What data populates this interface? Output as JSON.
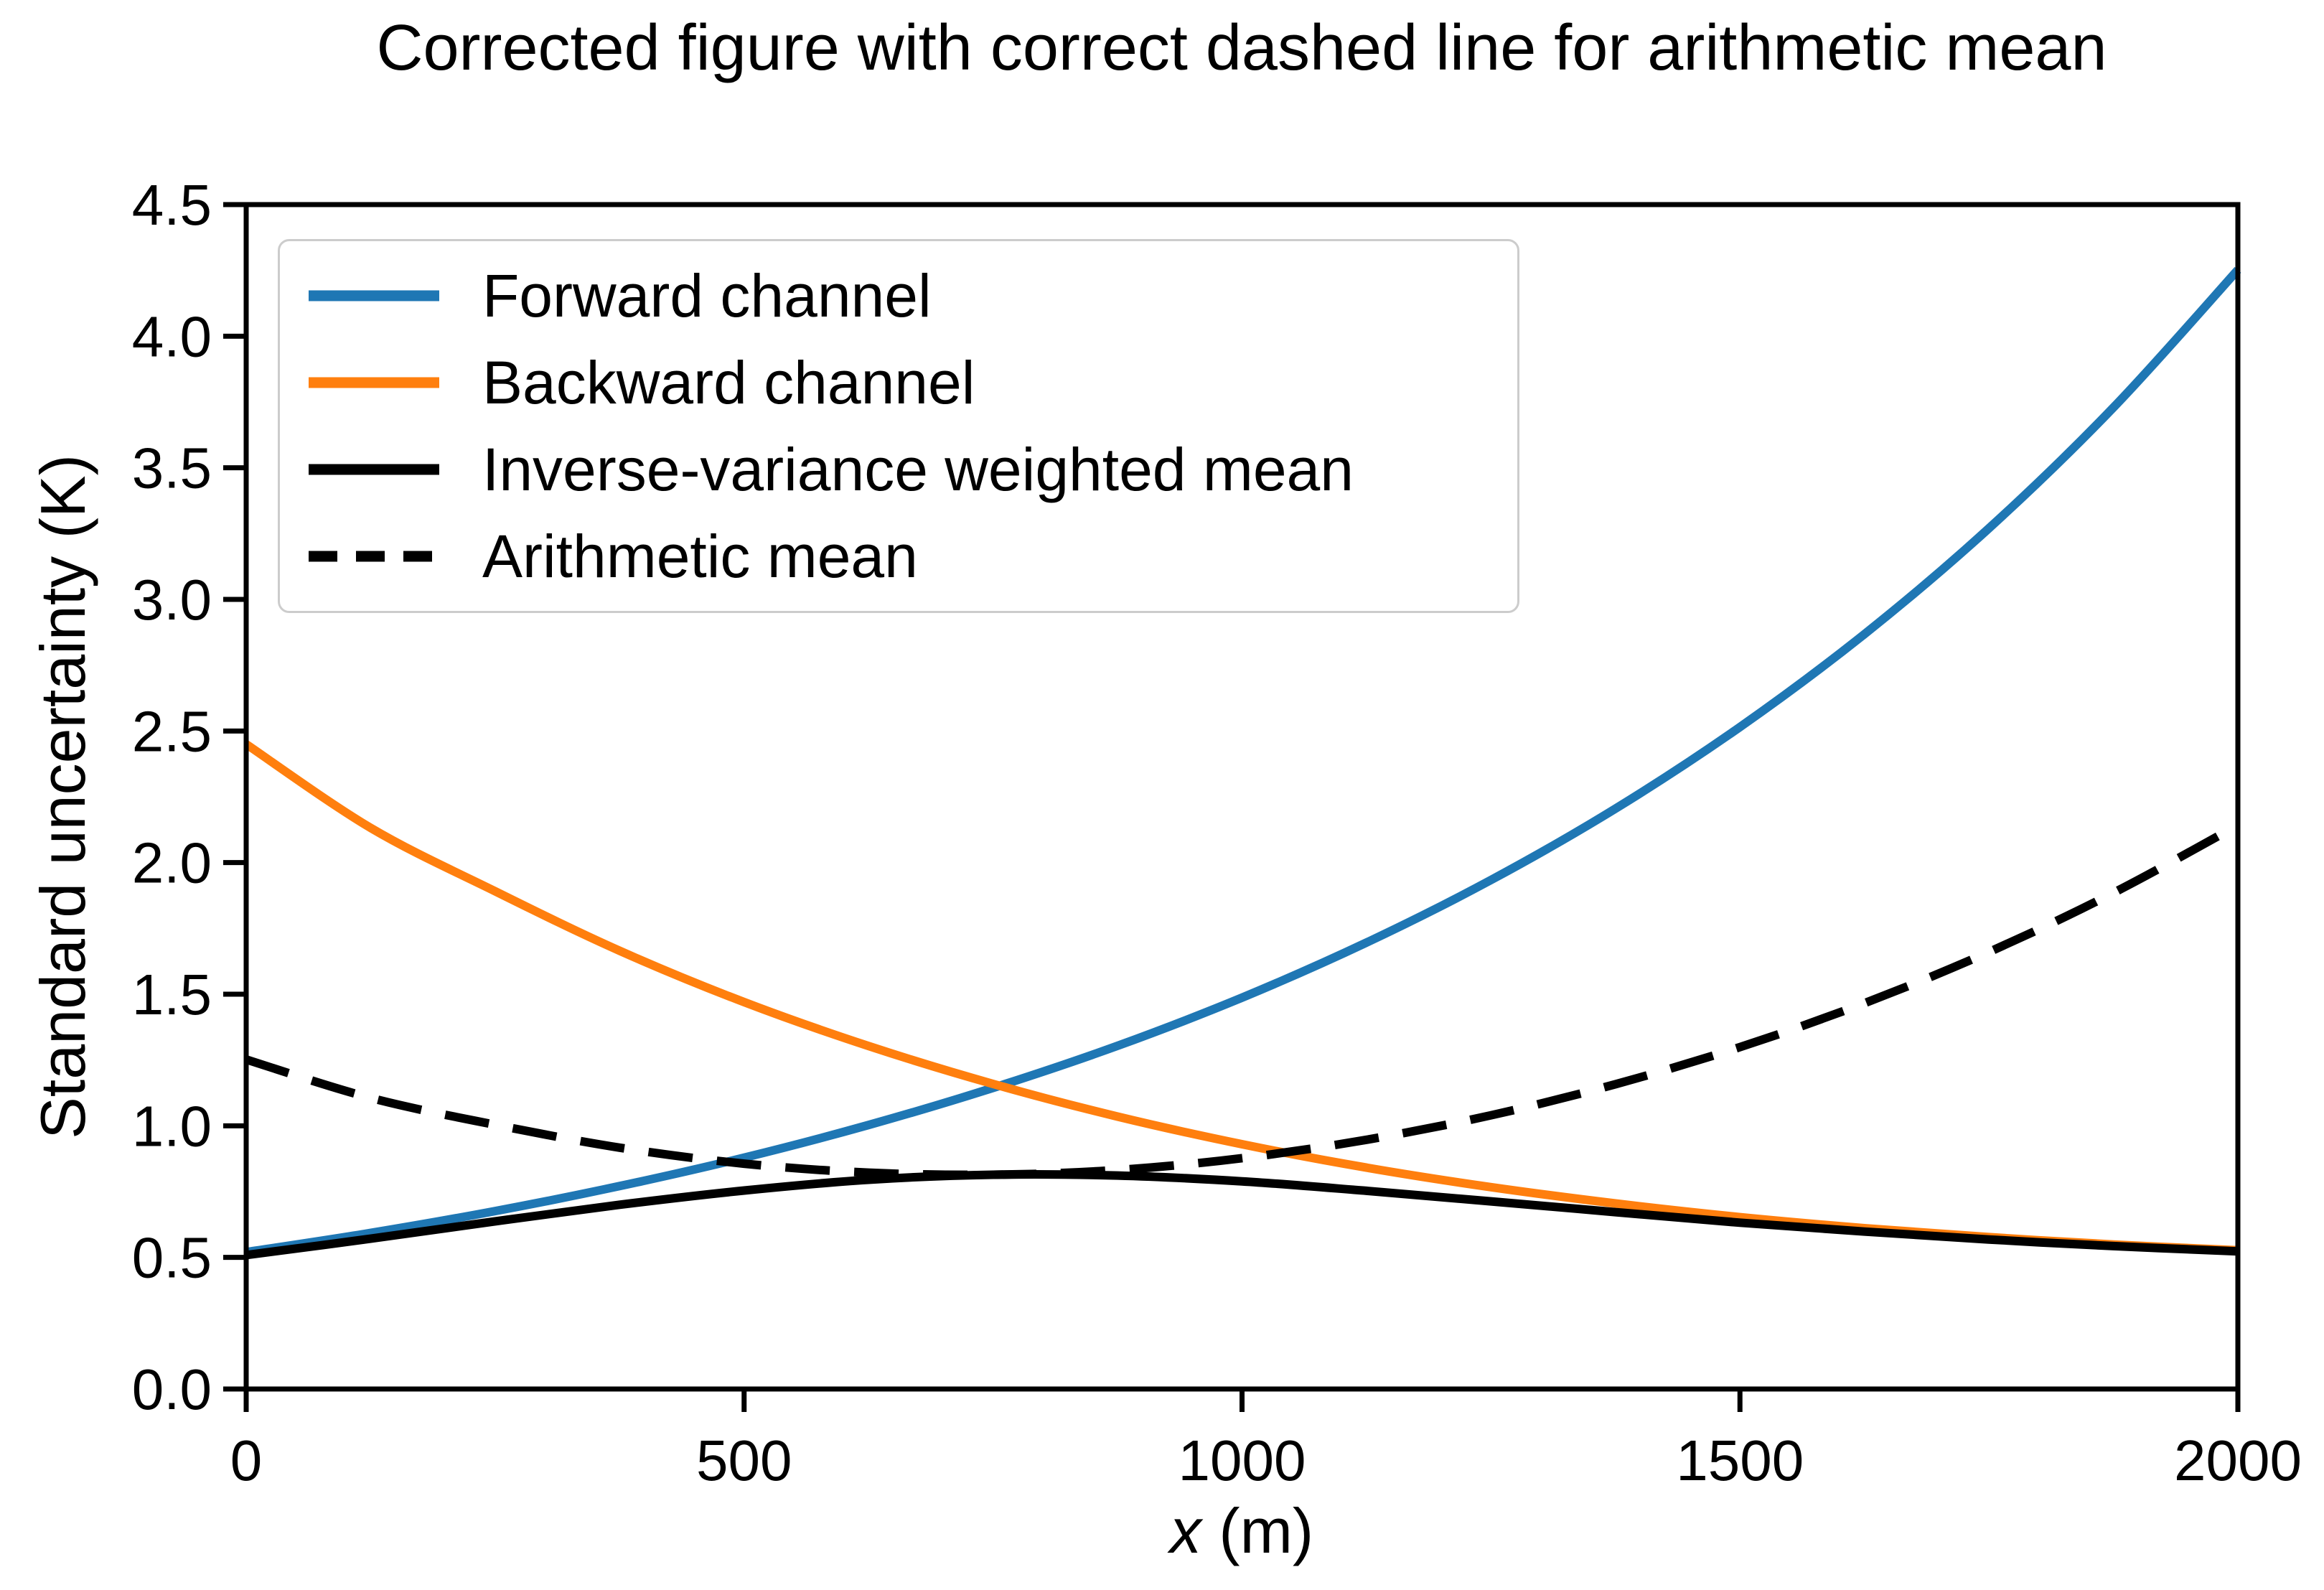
{
  "title": "Corrected figure with correct dashed line for arithmetic mean",
  "chart_data": {
    "type": "line",
    "title": "Corrected figure with correct dashed line for arithmetic mean",
    "xlabel": "x (m)",
    "xlabel_var": "x",
    "xlabel_unit": " (m)",
    "ylabel": "Standard uncertainty (K)",
    "xlim": [
      0,
      2000
    ],
    "ylim": [
      0,
      4.5
    ],
    "xtick_labels": [
      "0",
      "500",
      "1000",
      "1500",
      "2000"
    ],
    "ytick_labels": [
      "0.0",
      "0.5",
      "1.0",
      "1.5",
      "2.0",
      "2.5",
      "3.0",
      "3.5",
      "4.0",
      "4.5"
    ],
    "grid": false,
    "legend_position": "upper left",
    "x": [
      0,
      125,
      250,
      375,
      500,
      625,
      750,
      875,
      1000,
      1125,
      1250,
      1375,
      1500,
      1625,
      1750,
      1875,
      2000
    ],
    "series": [
      {
        "name": "Forward channel",
        "color": "#1f77b4",
        "style": "solid",
        "values": [
          0.52,
          0.593,
          0.676,
          0.771,
          0.879,
          1.003,
          1.144,
          1.304,
          1.487,
          1.696,
          1.934,
          2.205,
          2.515,
          2.868,
          3.27,
          3.729,
          4.252
        ]
      },
      {
        "name": "Backward channel",
        "color": "#ff7f0e",
        "style": "solid",
        "values": [
          2.45,
          2.132,
          1.891,
          1.665,
          1.47,
          1.303,
          1.159,
          1.035,
          0.93,
          0.841,
          0.767,
          0.705,
          0.653,
          0.611,
          0.577,
          0.549,
          0.527
        ]
      },
      {
        "name": "Inverse-variance weighted mean",
        "color": "#000000",
        "style": "solid",
        "values": [
          0.509,
          0.571,
          0.637,
          0.7,
          0.754,
          0.795,
          0.814,
          0.811,
          0.789,
          0.753,
          0.713,
          0.672,
          0.632,
          0.598,
          0.568,
          0.543,
          0.523
        ]
      },
      {
        "name": "Arithmetic mean",
        "color": "#000000",
        "style": "dashed",
        "values": [
          1.252,
          1.106,
          1.004,
          0.917,
          0.856,
          0.822,
          0.814,
          0.832,
          0.877,
          0.947,
          1.04,
          1.158,
          1.299,
          1.466,
          1.66,
          1.885,
          2.142
        ]
      }
    ]
  }
}
